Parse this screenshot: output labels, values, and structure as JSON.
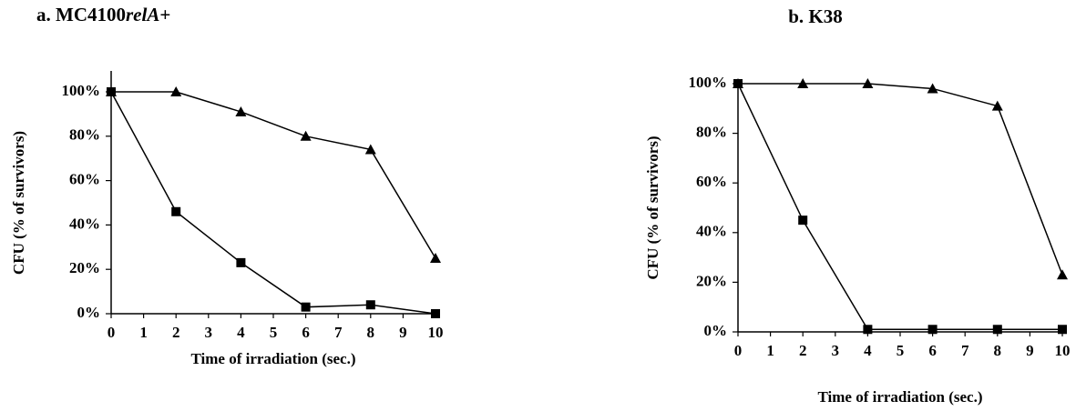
{
  "chart_data": [
    {
      "type": "line",
      "title": [
        "a. MC4100",
        "relA",
        "+"
      ],
      "xlabel": "Time of  irradiation (sec.)",
      "ylabel": "CFU (% of survivors)",
      "x": [
        0,
        2,
        4,
        6,
        8,
        10
      ],
      "xlim": [
        0,
        10
      ],
      "xticks": [
        0,
        1,
        2,
        3,
        4,
        5,
        6,
        7,
        8,
        9,
        10
      ],
      "ylim": [
        0,
        100
      ],
      "yticks": [
        {
          "value": 0,
          "label": "0%"
        },
        {
          "value": 20,
          "label": "20%"
        },
        {
          "value": 40,
          "label": "40%"
        },
        {
          "value": 60,
          "label": "60%"
        },
        {
          "value": 80,
          "label": "80%"
        },
        {
          "value": 100,
          "label": "100%"
        }
      ],
      "series": [
        {
          "color": "#000000",
          "marker": "triangle",
          "values": [
            100,
            100,
            91,
            80,
            74,
            25
          ]
        },
        {
          "color": "#000000",
          "marker": "square",
          "values": [
            100,
            46,
            23,
            3,
            4,
            0
          ]
        }
      ]
    },
    {
      "type": "line",
      "title": [
        "b. K38"
      ],
      "xlabel": "Time of  irradiation (sec.)",
      "ylabel": "CFU (% of survivors)",
      "x": [
        0,
        2,
        4,
        6,
        8,
        10
      ],
      "xlim": [
        0,
        10
      ],
      "xticks": [
        0,
        1,
        2,
        3,
        4,
        5,
        6,
        7,
        8,
        9,
        10
      ],
      "ylim": [
        0,
        100
      ],
      "yticks": [
        {
          "value": 0,
          "label": "0%"
        },
        {
          "value": 20,
          "label": "20%"
        },
        {
          "value": 40,
          "label": "40%"
        },
        {
          "value": 60,
          "label": "60%"
        },
        {
          "value": 80,
          "label": "80%"
        },
        {
          "value": 100,
          "label": "100%"
        }
      ],
      "series": [
        {
          "color": "#000000",
          "marker": "triangle",
          "values": [
            100,
            100,
            100,
            98,
            91,
            23
          ]
        },
        {
          "color": "#000000",
          "marker": "square",
          "values": [
            100,
            45,
            1,
            1,
            1,
            1
          ]
        }
      ]
    }
  ]
}
